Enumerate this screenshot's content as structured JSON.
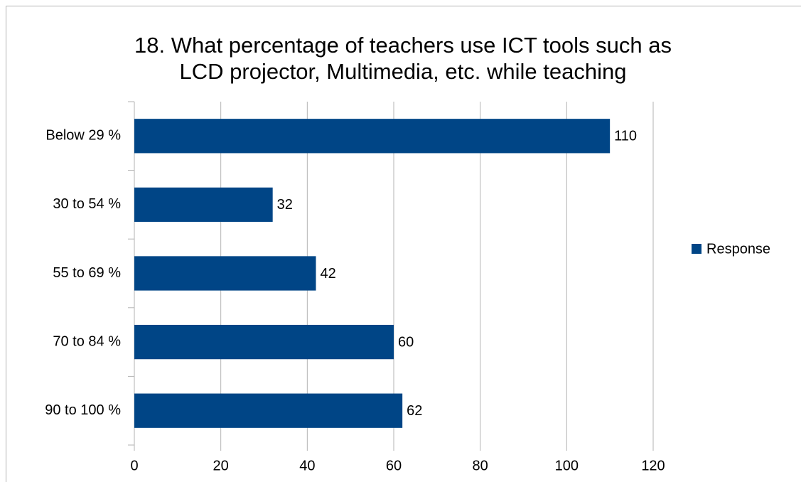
{
  "chart_data": {
    "type": "bar",
    "orientation": "horizontal",
    "title": [
      "18. What percentage of teachers use ICT tools such as",
      "LCD projector, Multimedia, etc. while teaching"
    ],
    "categories": [
      "Below 29 %",
      "30 to 54 %",
      "55 to 69 %",
      "70 to 84 %",
      "90 to 100 %"
    ],
    "series": [
      {
        "name": "Response",
        "color": "#004586",
        "values": [
          110,
          32,
          42,
          60,
          62
        ]
      }
    ],
    "xlim": [
      0,
      120
    ],
    "xticks": [
      0,
      20,
      40,
      60,
      80,
      100,
      120
    ],
    "grid": true,
    "legend": "right"
  }
}
